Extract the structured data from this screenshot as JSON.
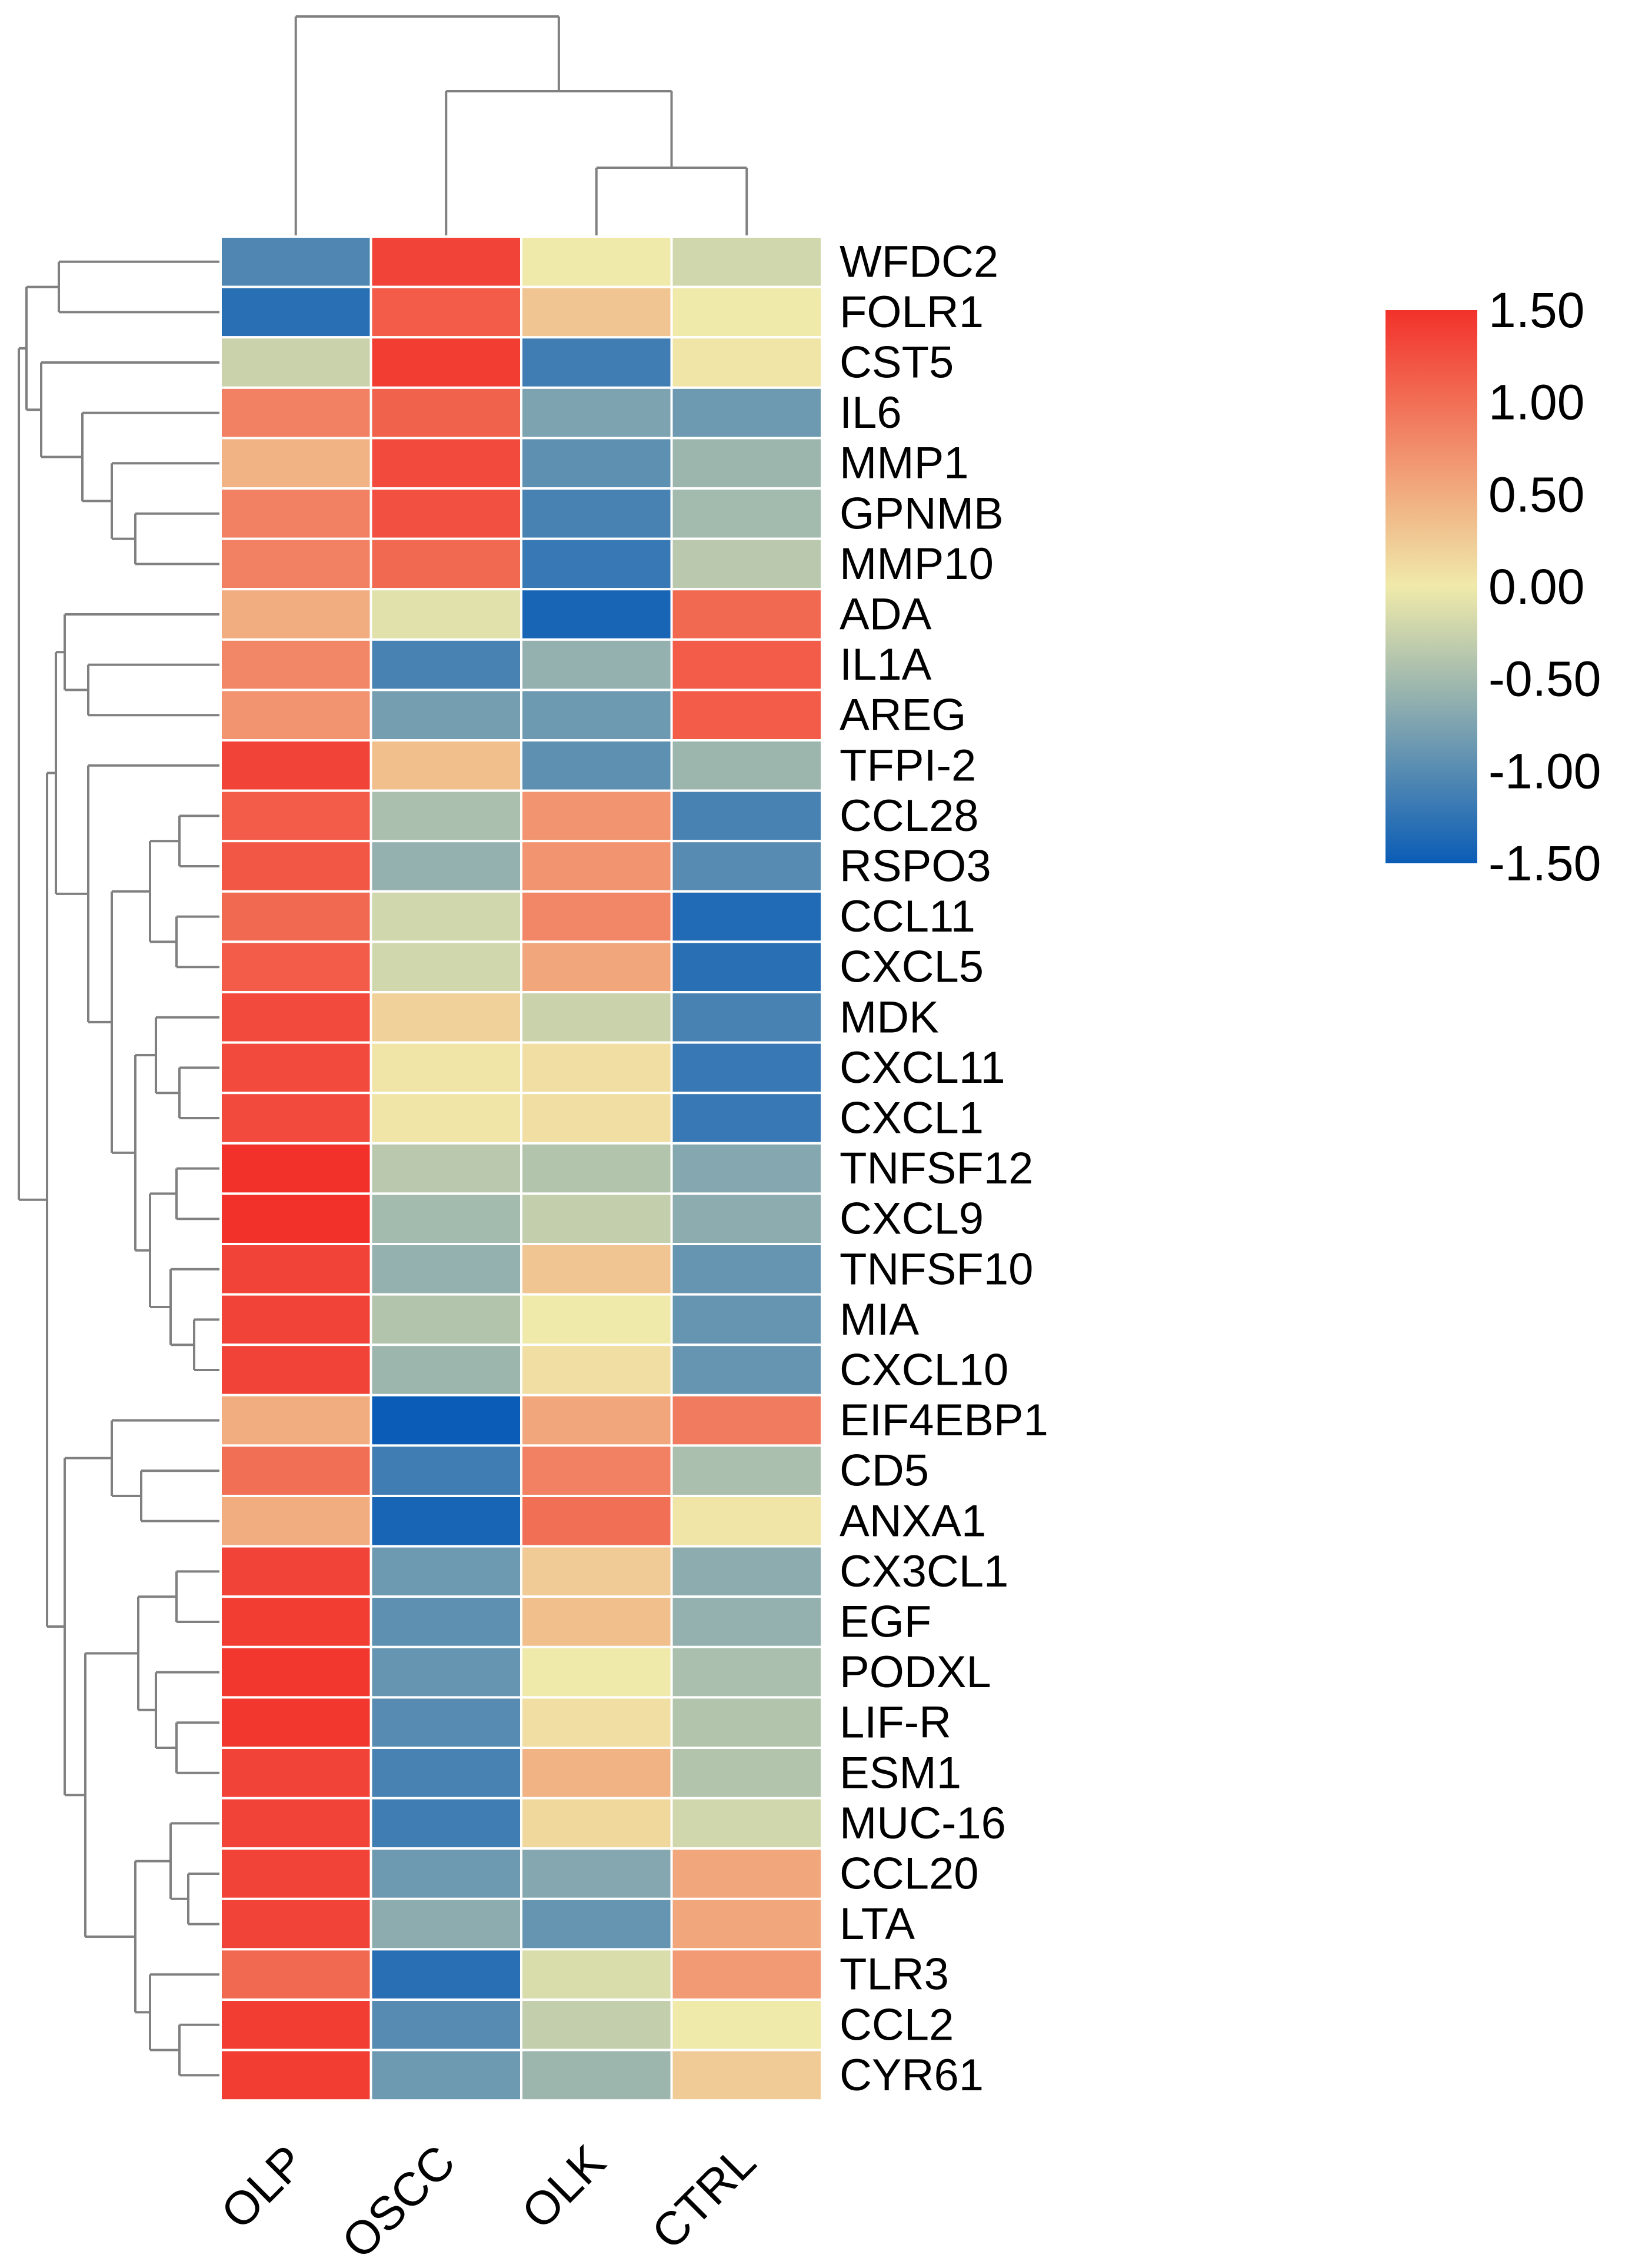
{
  "chart_data": {
    "type": "heatmap",
    "title": "",
    "columns": [
      "OLP",
      "OSCC",
      "OLK",
      "CTRL"
    ],
    "rows": [
      "WFDC2",
      "FOLR1",
      "CST5",
      "IL6",
      "MMP1",
      "GPNMB",
      "MMP10",
      "ADA",
      "IL1A",
      "AREG",
      "TFPI-2",
      "CCL28",
      "RSPO3",
      "CCL11",
      "CXCL5",
      "MDK",
      "CXCL11",
      "CXCL1",
      "TNFSF12",
      "CXCL9",
      "TNFSF10",
      "MIA",
      "CXCL10",
      "EIF4EBP1",
      "CD5",
      "ANXA1",
      "CX3CL1",
      "EGF",
      "PODXL",
      "LIF-R",
      "ESM1",
      "MUC-16",
      "CCL20",
      "LTA",
      "TLR3",
      "CCL2",
      "CYR61"
    ],
    "values": [
      [
        -1.05,
        1.35,
        0.0,
        -0.2
      ],
      [
        -1.3,
        1.15,
        0.3,
        0.0
      ],
      [
        -0.25,
        1.4,
        -1.15,
        0.05
      ],
      [
        0.85,
        1.1,
        -0.75,
        -0.85
      ],
      [
        0.45,
        1.3,
        -0.95,
        -0.55
      ],
      [
        0.85,
        1.25,
        -1.1,
        -0.5
      ],
      [
        0.85,
        1.05,
        -1.2,
        -0.35
      ],
      [
        0.5,
        -0.1,
        -1.4,
        1.05
      ],
      [
        0.8,
        -1.1,
        -0.6,
        1.15
      ],
      [
        0.7,
        -0.8,
        -0.85,
        1.15
      ],
      [
        1.35,
        0.35,
        -0.95,
        -0.55
      ],
      [
        1.15,
        -0.45,
        0.7,
        -1.1
      ],
      [
        1.2,
        -0.6,
        0.7,
        -1.0
      ],
      [
        1.05,
        -0.2,
        0.8,
        -1.35
      ],
      [
        1.15,
        -0.2,
        0.55,
        -1.3
      ],
      [
        1.3,
        0.2,
        -0.25,
        -1.1
      ],
      [
        1.3,
        0.05,
        0.1,
        -1.2
      ],
      [
        1.3,
        0.05,
        0.1,
        -1.2
      ],
      [
        1.5,
        -0.35,
        -0.4,
        -0.7
      ],
      [
        1.5,
        -0.5,
        -0.3,
        -0.65
      ],
      [
        1.35,
        -0.6,
        0.3,
        -0.9
      ],
      [
        1.35,
        -0.4,
        0.0,
        -0.9
      ],
      [
        1.35,
        -0.55,
        0.1,
        -0.9
      ],
      [
        0.5,
        -1.5,
        0.55,
        0.9
      ],
      [
        1.0,
        -1.15,
        0.85,
        -0.45
      ],
      [
        0.5,
        -1.4,
        1.0,
        0.05
      ],
      [
        1.35,
        -0.85,
        0.25,
        -0.65
      ],
      [
        1.4,
        -0.95,
        0.35,
        -0.6
      ],
      [
        1.45,
        -0.9,
        0.0,
        -0.45
      ],
      [
        1.45,
        -1.0,
        0.1,
        -0.4
      ],
      [
        1.35,
        -1.1,
        0.45,
        -0.4
      ],
      [
        1.35,
        -1.15,
        0.15,
        -0.2
      ],
      [
        1.35,
        -0.85,
        -0.7,
        0.55
      ],
      [
        1.35,
        -0.65,
        -0.9,
        0.55
      ],
      [
        1.05,
        -1.3,
        -0.15,
        0.65
      ],
      [
        1.4,
        -1.0,
        -0.3,
        0.0
      ],
      [
        1.4,
        -0.85,
        -0.55,
        0.25
      ]
    ],
    "color_scale": {
      "min": -1.5,
      "max": 1.5,
      "stops": [
        "#0a5cb6",
        "#f0eaaa",
        "#f2312b"
      ],
      "ticks": [
        "1.50",
        "1.00",
        "0.50",
        "0.00",
        "-0.50",
        "-1.00",
        "-1.50"
      ]
    },
    "dendrogram_color": "#808080",
    "cell_border_color": "#ffffff"
  }
}
